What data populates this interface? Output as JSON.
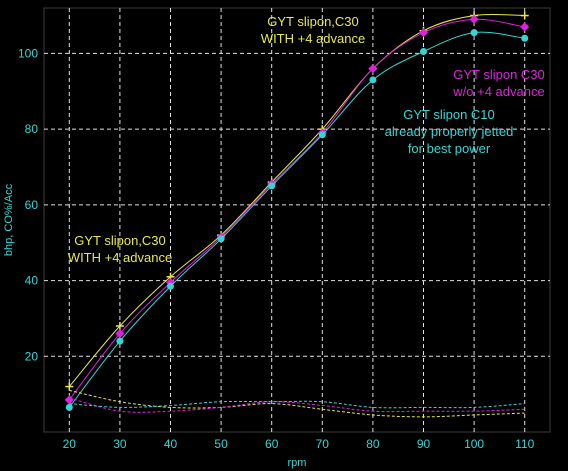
{
  "chart_data": {
    "type": "line",
    "xlabel": "rpm",
    "ylabel": "bhp, CO%/Acc",
    "xlim": [
      15,
      115
    ],
    "ylim": [
      0,
      112
    ],
    "x_ticks": [
      "20",
      "30",
      "40",
      "50",
      "60",
      "70",
      "80",
      "90",
      "100",
      "110"
    ],
    "y_ticks": [
      "20",
      "40",
      "60",
      "80",
      "100"
    ],
    "grid": true,
    "colors": {
      "background": "#000000",
      "frame": "#3b3b3b",
      "grid": "#e0e0e0",
      "tick_text": "#33d6d6",
      "yellow": "#e8e84a",
      "magenta": "#e020e0",
      "cyan": "#33d6d6"
    },
    "x": [
      20,
      30,
      40,
      50,
      60,
      70,
      80,
      90,
      100,
      110
    ],
    "series": [
      {
        "color": "#e8e84a",
        "marker": "plus",
        "values": [
          12,
          28,
          41,
          52,
          66,
          80,
          96,
          106,
          110,
          110
        ]
      },
      {
        "color": "#e020e0",
        "marker": "diamond",
        "values": [
          8.5,
          26,
          39.5,
          51.5,
          65.5,
          79,
          96,
          105.5,
          109,
          107
        ]
      },
      {
        "color": "#33d6d6",
        "marker": "dot",
        "values": [
          6.5,
          24,
          38.5,
          51,
          65,
          78.5,
          93,
          100.5,
          105.5,
          104
        ]
      },
      {
        "color": "#e8e84a",
        "dashed": true,
        "values": [
          11,
          8,
          6.5,
          6.5,
          7.5,
          6,
          4.5,
          4,
          4.5,
          5
        ]
      },
      {
        "color": "#e020e0",
        "dashed": true,
        "values": [
          9,
          5.5,
          5.5,
          6.5,
          8,
          7,
          5.5,
          5.5,
          5.5,
          6
        ]
      },
      {
        "color": "#33d6d6",
        "dashed": true,
        "values": [
          7.5,
          6.5,
          7,
          8,
          8,
          8,
          6.5,
          6.5,
          6.5,
          7.5
        ]
      }
    ],
    "annotations": [
      {
        "lines": [
          "GYT slipon,C30",
          "WITH +4 advance"
        ],
        "color": "#e8e84a"
      },
      {
        "lines": [
          "GYT slipon C30",
          "w/o +4 advance"
        ],
        "color": "#e020e0"
      },
      {
        "lines": [
          "GYT slipon C10",
          "already properly jetted",
          "for best power"
        ],
        "color": "#33d6d6"
      },
      {
        "lines": [
          "GYT slipon,C30",
          "WITH +4 advance"
        ],
        "color": "#e8e84a"
      }
    ]
  }
}
